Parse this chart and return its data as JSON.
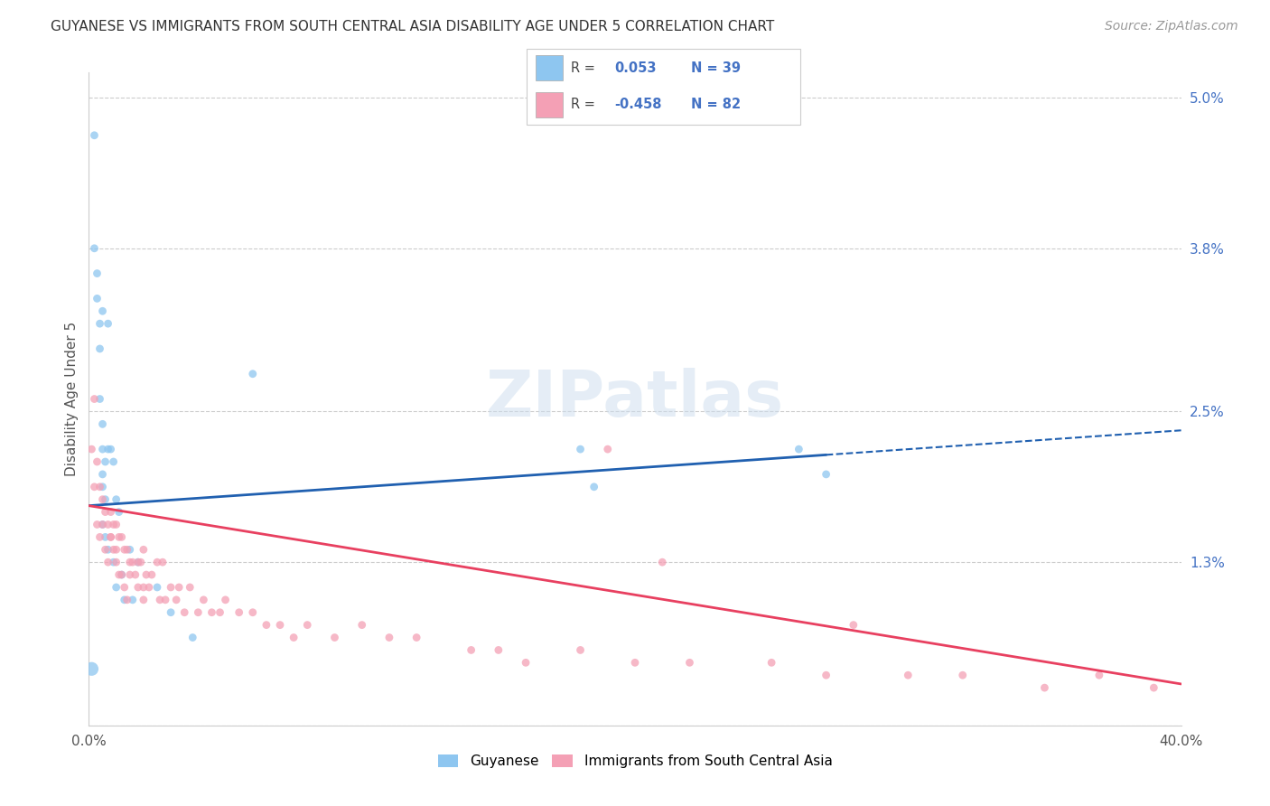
{
  "title": "GUYANESE VS IMMIGRANTS FROM SOUTH CENTRAL ASIA DISABILITY AGE UNDER 5 CORRELATION CHART",
  "source": "Source: ZipAtlas.com",
  "ylabel": "Disability Age Under 5",
  "xlim": [
    0.0,
    0.4
  ],
  "ylim": [
    0.0,
    0.052
  ],
  "ytick_vals": [
    0.0,
    0.013,
    0.025,
    0.038,
    0.05
  ],
  "ytick_labels": [
    "",
    "1.3%",
    "2.5%",
    "3.8%",
    "5.0%"
  ],
  "legend_label1": "Guyanese",
  "legend_label2": "Immigrants from South Central Asia",
  "r1": "0.053",
  "n1": "39",
  "r2": "-0.458",
  "n2": "82",
  "color_blue": "#8EC6F0",
  "color_pink": "#F4A0B5",
  "line_blue": "#2060B0",
  "line_pink": "#E84060",
  "background": "#FFFFFF",
  "blue_line_x0": 0.0,
  "blue_line_x_solid_end": 0.27,
  "blue_line_x1": 0.4,
  "blue_line_y0": 0.0175,
  "blue_line_y1": 0.0235,
  "pink_line_x0": 0.0,
  "pink_line_x1": 0.4,
  "pink_line_y0": 0.0175,
  "pink_line_y1": 0.0033,
  "guyanese_x": [
    0.001,
    0.002,
    0.002,
    0.003,
    0.003,
    0.004,
    0.004,
    0.004,
    0.005,
    0.005,
    0.005,
    0.005,
    0.005,
    0.006,
    0.006,
    0.006,
    0.007,
    0.007,
    0.008,
    0.009,
    0.009,
    0.01,
    0.01,
    0.011,
    0.012,
    0.013,
    0.015,
    0.016,
    0.018,
    0.025,
    0.03,
    0.038,
    0.06,
    0.18,
    0.185,
    0.26,
    0.27,
    0.005,
    0.007
  ],
  "guyanese_y": [
    0.0045,
    0.047,
    0.038,
    0.036,
    0.034,
    0.032,
    0.03,
    0.026,
    0.024,
    0.022,
    0.02,
    0.019,
    0.016,
    0.021,
    0.018,
    0.015,
    0.022,
    0.014,
    0.022,
    0.021,
    0.013,
    0.018,
    0.011,
    0.017,
    0.012,
    0.01,
    0.014,
    0.01,
    0.013,
    0.011,
    0.009,
    0.007,
    0.028,
    0.022,
    0.019,
    0.022,
    0.02,
    0.033,
    0.032
  ],
  "guyanese_size": [
    120,
    40,
    40,
    40,
    40,
    40,
    40,
    40,
    40,
    40,
    40,
    40,
    40,
    40,
    40,
    40,
    40,
    40,
    40,
    40,
    40,
    40,
    40,
    40,
    40,
    40,
    40,
    40,
    40,
    40,
    40,
    40,
    40,
    40,
    40,
    40,
    40,
    40,
    40
  ],
  "asia_x": [
    0.001,
    0.002,
    0.002,
    0.003,
    0.003,
    0.004,
    0.004,
    0.005,
    0.005,
    0.006,
    0.006,
    0.007,
    0.007,
    0.008,
    0.008,
    0.009,
    0.009,
    0.01,
    0.01,
    0.011,
    0.011,
    0.012,
    0.012,
    0.013,
    0.013,
    0.014,
    0.014,
    0.015,
    0.016,
    0.017,
    0.018,
    0.018,
    0.019,
    0.02,
    0.02,
    0.021,
    0.022,
    0.023,
    0.025,
    0.026,
    0.027,
    0.028,
    0.03,
    0.032,
    0.033,
    0.035,
    0.037,
    0.04,
    0.042,
    0.045,
    0.048,
    0.05,
    0.055,
    0.06,
    0.065,
    0.07,
    0.075,
    0.08,
    0.09,
    0.1,
    0.11,
    0.12,
    0.14,
    0.15,
    0.16,
    0.18,
    0.2,
    0.22,
    0.25,
    0.27,
    0.3,
    0.32,
    0.35,
    0.37,
    0.39,
    0.19,
    0.21,
    0.28,
    0.008,
    0.01,
    0.015,
    0.02
  ],
  "asia_y": [
    0.022,
    0.026,
    0.019,
    0.021,
    0.016,
    0.019,
    0.015,
    0.018,
    0.016,
    0.017,
    0.014,
    0.016,
    0.013,
    0.017,
    0.015,
    0.016,
    0.014,
    0.016,
    0.013,
    0.015,
    0.012,
    0.015,
    0.012,
    0.014,
    0.011,
    0.014,
    0.01,
    0.013,
    0.013,
    0.012,
    0.013,
    0.011,
    0.013,
    0.014,
    0.01,
    0.012,
    0.011,
    0.012,
    0.013,
    0.01,
    0.013,
    0.01,
    0.011,
    0.01,
    0.011,
    0.009,
    0.011,
    0.009,
    0.01,
    0.009,
    0.009,
    0.01,
    0.009,
    0.009,
    0.008,
    0.008,
    0.007,
    0.008,
    0.007,
    0.008,
    0.007,
    0.007,
    0.006,
    0.006,
    0.005,
    0.006,
    0.005,
    0.005,
    0.005,
    0.004,
    0.004,
    0.004,
    0.003,
    0.004,
    0.003,
    0.022,
    0.013,
    0.008,
    0.015,
    0.014,
    0.012,
    0.011
  ],
  "asia_size": [
    40,
    40,
    40,
    40,
    40,
    40,
    40,
    40,
    40,
    40,
    40,
    40,
    40,
    40,
    40,
    40,
    40,
    40,
    40,
    40,
    40,
    40,
    40,
    40,
    40,
    40,
    40,
    40,
    40,
    40,
    40,
    40,
    40,
    40,
    40,
    40,
    40,
    40,
    40,
    40,
    40,
    40,
    40,
    40,
    40,
    40,
    40,
    40,
    40,
    40,
    40,
    40,
    40,
    40,
    40,
    40,
    40,
    40,
    40,
    40,
    40,
    40,
    40,
    40,
    40,
    40,
    40,
    40,
    40,
    40,
    40,
    40,
    40,
    40,
    40,
    40,
    40,
    40,
    40,
    40,
    40,
    40
  ]
}
